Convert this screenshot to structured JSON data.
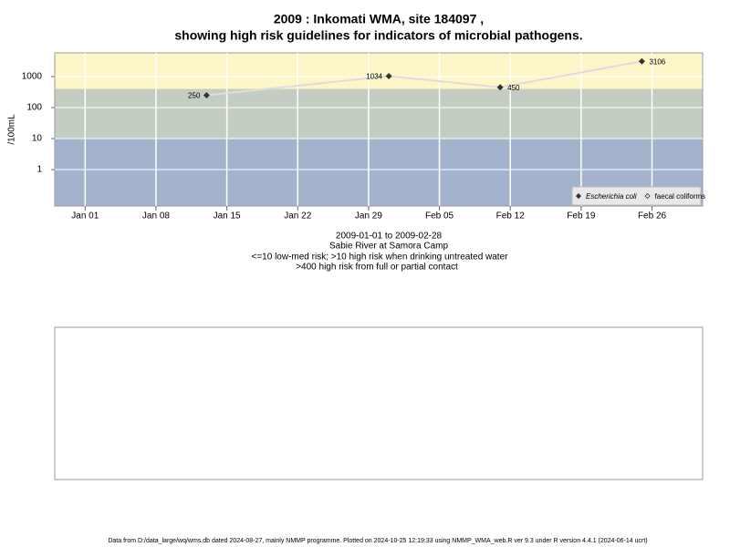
{
  "chart_data": {
    "type": "line",
    "title": "2009 : Inkomati WMA, site 184097 ,",
    "subtitle": "showing high risk guidelines for indicators of microbial pathogens.",
    "y_label": "/100mL",
    "notes": [
      "2009-01-01 to 2009-02-28",
      "Sabie River at Samora Camp",
      "<=10 low-med risk; >10 high risk when drinking untreated water",
      ">400 high risk from full or partial contact"
    ],
    "footer": "Data from D:/data_large/wq/wms.db dated 2024-08-27, mainly NMMP programme. Plotted on 2024-10-25 12:19:33 using NMMP_WMA_web.R ver 9.3 under R version 4.4.1 (2024-06-14 ucrt)",
    "x": [
      "2009-01-13",
      "2009-01-31",
      "2009-02-11",
      "2009-02-25"
    ],
    "series": [
      {
        "name": "Escherichia coli",
        "color": "#333333",
        "values": [
          250,
          1034,
          450,
          3106
        ]
      },
      {
        "name": "faecal coliforms",
        "color": "#333333",
        "values": [
          null,
          null,
          null,
          null
        ]
      }
    ],
    "line_color": "#dddddd",
    "log_scale": true,
    "xlim": [
      "2008-12-29",
      "2009-03-03"
    ],
    "xticks": [
      {
        "value": "2009-01-01",
        "label": "Jan 01"
      },
      {
        "value": "2009-01-08",
        "label": "Jan 08"
      },
      {
        "value": "2009-01-15",
        "label": "Jan 15"
      },
      {
        "value": "2009-01-22",
        "label": "Jan 22"
      },
      {
        "value": "2009-01-29",
        "label": "Jan 29"
      },
      {
        "value": "2009-02-05",
        "label": "Feb 05"
      },
      {
        "value": "2009-02-12",
        "label": "Feb 12"
      },
      {
        "value": "2009-02-19",
        "label": "Feb 19"
      },
      {
        "value": "2009-02-26",
        "label": "Feb 26"
      }
    ],
    "ylim": [
      0.067,
      5800
    ],
    "yticks": [
      1,
      10,
      100,
      1000
    ],
    "thresholds": [
      10,
      400
    ],
    "band_colors": [
      "#a3b3cd",
      "#c3cdc1",
      "#fdf6c8"
    ],
    "grid": true,
    "legend": "bottom-right"
  }
}
